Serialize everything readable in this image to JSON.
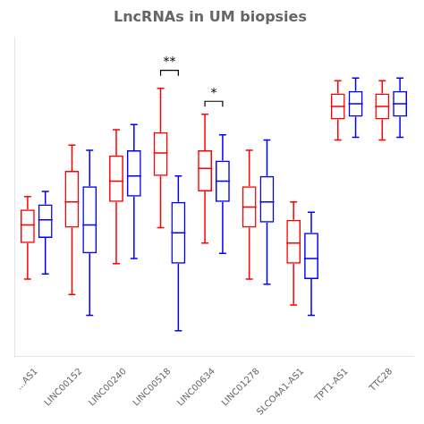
{
  "chart_data": {
    "type": "box",
    "title": "LncRNAs in UM biopsies",
    "categories": [
      "...AS1",
      "LINC00152",
      "LINC00240",
      "LINC00518",
      "LINC00634",
      "LINC01278",
      "SLCO4A1-AS1",
      "TPT1-AS1",
      "TTC28"
    ],
    "series": [
      {
        "color": "#FF0000",
        "values": [
          {
            "whislo": 3.5,
            "q1": 4.2,
            "med": 4.55,
            "q3": 4.85,
            "whishi": 5.1
          },
          {
            "whislo": 3.2,
            "q1": 4.5,
            "med": 5.0,
            "q3": 5.6,
            "whishi": 6.1
          },
          {
            "whislo": 3.8,
            "q1": 5.0,
            "med": 5.4,
            "q3": 5.9,
            "whishi": 6.4
          },
          {
            "whislo": 4.5,
            "q1": 5.5,
            "med": 5.95,
            "q3": 6.35,
            "whishi": 7.2
          },
          {
            "whislo": 4.2,
            "q1": 5.2,
            "med": 5.65,
            "q3": 6.0,
            "whishi": 6.7
          },
          {
            "whislo": 3.5,
            "q1": 4.5,
            "med": 4.9,
            "q3": 5.3,
            "whishi": 6.0
          },
          {
            "whislo": 3.0,
            "q1": 3.8,
            "med": 4.2,
            "q3": 4.65,
            "whishi": 5.0
          },
          {
            "whislo": 6.2,
            "q1": 6.6,
            "med": 6.85,
            "q3": 7.1,
            "whishi": 7.35
          },
          {
            "whislo": 6.2,
            "q1": 6.6,
            "med": 6.85,
            "q3": 7.1,
            "whishi": 7.35
          }
        ]
      },
      {
        "color": "#0000FF",
        "values": [
          {
            "whislo": 3.6,
            "q1": 4.3,
            "med": 4.65,
            "q3": 4.95,
            "whishi": 5.2
          },
          {
            "whislo": 2.8,
            "q1": 4.0,
            "med": 4.55,
            "q3": 5.3,
            "whishi": 6.0
          },
          {
            "whislo": 3.9,
            "q1": 5.1,
            "med": 5.5,
            "q3": 6.0,
            "whishi": 6.5
          },
          {
            "whislo": 2.5,
            "q1": 3.8,
            "med": 4.4,
            "q3": 5.0,
            "whishi": 5.5
          },
          {
            "whislo": 4.0,
            "q1": 5.0,
            "med": 5.4,
            "q3": 5.8,
            "whishi": 6.3
          },
          {
            "whislo": 3.4,
            "q1": 4.6,
            "med": 5.0,
            "q3": 5.5,
            "whishi": 6.2
          },
          {
            "whislo": 2.8,
            "q1": 3.5,
            "med": 3.9,
            "q3": 4.4,
            "whishi": 4.8
          },
          {
            "whislo": 6.25,
            "q1": 6.65,
            "med": 6.9,
            "q3": 7.15,
            "whishi": 7.4
          },
          {
            "whislo": 6.25,
            "q1": 6.65,
            "med": 6.9,
            "q3": 7.15,
            "whishi": 7.4
          }
        ]
      }
    ],
    "annotations": [
      {
        "category": "LINC00518",
        "y": 7.55,
        "label": "**"
      },
      {
        "category": "LINC00634",
        "y": 6.95,
        "label": "*"
      }
    ],
    "ylim": [
      2.0,
      8.2
    ],
    "grid": false,
    "tick_labels": "x"
  }
}
